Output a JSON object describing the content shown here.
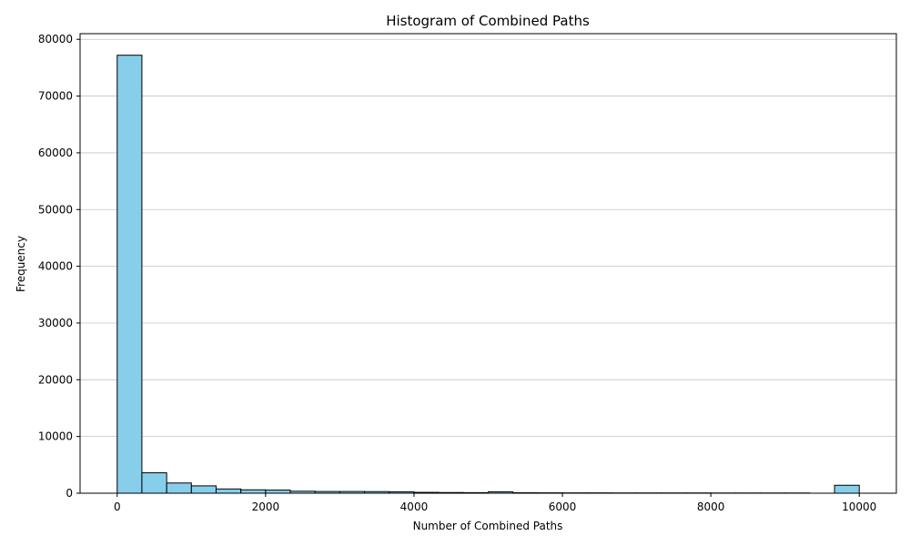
{
  "chart_data": {
    "type": "bar",
    "title": "Histogram of Combined Paths",
    "xlabel": "Number of Combined Paths",
    "ylabel": "Frequency",
    "xlim": [
      -500,
      10500
    ],
    "ylim": [
      0,
      81000
    ],
    "bar_color": "#87CEEB",
    "edge_color": "#000000",
    "grid": "y",
    "x_ticks": [
      0,
      2000,
      4000,
      6000,
      8000,
      10000
    ],
    "y_ticks": [
      0,
      10000,
      20000,
      30000,
      40000,
      50000,
      60000,
      70000,
      80000
    ],
    "bins": [
      {
        "x0": 0,
        "x1": 333,
        "count": 77200
      },
      {
        "x0": 333,
        "x1": 667,
        "count": 3600
      },
      {
        "x0": 667,
        "x1": 1000,
        "count": 1800
      },
      {
        "x0": 1000,
        "x1": 1333,
        "count": 1300
      },
      {
        "x0": 1333,
        "x1": 1667,
        "count": 750
      },
      {
        "x0": 1667,
        "x1": 2000,
        "count": 600
      },
      {
        "x0": 2000,
        "x1": 2333,
        "count": 550
      },
      {
        "x0": 2333,
        "x1": 2667,
        "count": 350
      },
      {
        "x0": 2667,
        "x1": 3000,
        "count": 300
      },
      {
        "x0": 3000,
        "x1": 3333,
        "count": 300
      },
      {
        "x0": 3333,
        "x1": 3667,
        "count": 280
      },
      {
        "x0": 3667,
        "x1": 4000,
        "count": 250
      },
      {
        "x0": 4000,
        "x1": 4333,
        "count": 150
      },
      {
        "x0": 4333,
        "x1": 4667,
        "count": 120
      },
      {
        "x0": 4667,
        "x1": 5000,
        "count": 100
      },
      {
        "x0": 5000,
        "x1": 5333,
        "count": 250
      },
      {
        "x0": 5333,
        "x1": 5667,
        "count": 80
      },
      {
        "x0": 5667,
        "x1": 6000,
        "count": 70
      },
      {
        "x0": 6000,
        "x1": 6333,
        "count": 60
      },
      {
        "x0": 6333,
        "x1": 6667,
        "count": 60
      },
      {
        "x0": 6667,
        "x1": 7000,
        "count": 50
      },
      {
        "x0": 7000,
        "x1": 7333,
        "count": 50
      },
      {
        "x0": 7333,
        "x1": 7667,
        "count": 50
      },
      {
        "x0": 7667,
        "x1": 8000,
        "count": 50
      },
      {
        "x0": 8000,
        "x1": 8333,
        "count": 40
      },
      {
        "x0": 8333,
        "x1": 8667,
        "count": 40
      },
      {
        "x0": 8667,
        "x1": 9000,
        "count": 40
      },
      {
        "x0": 9000,
        "x1": 9333,
        "count": 40
      },
      {
        "x0": 9333,
        "x1": 9667,
        "count": 0
      },
      {
        "x0": 9667,
        "x1": 10000,
        "count": 1400
      }
    ]
  }
}
